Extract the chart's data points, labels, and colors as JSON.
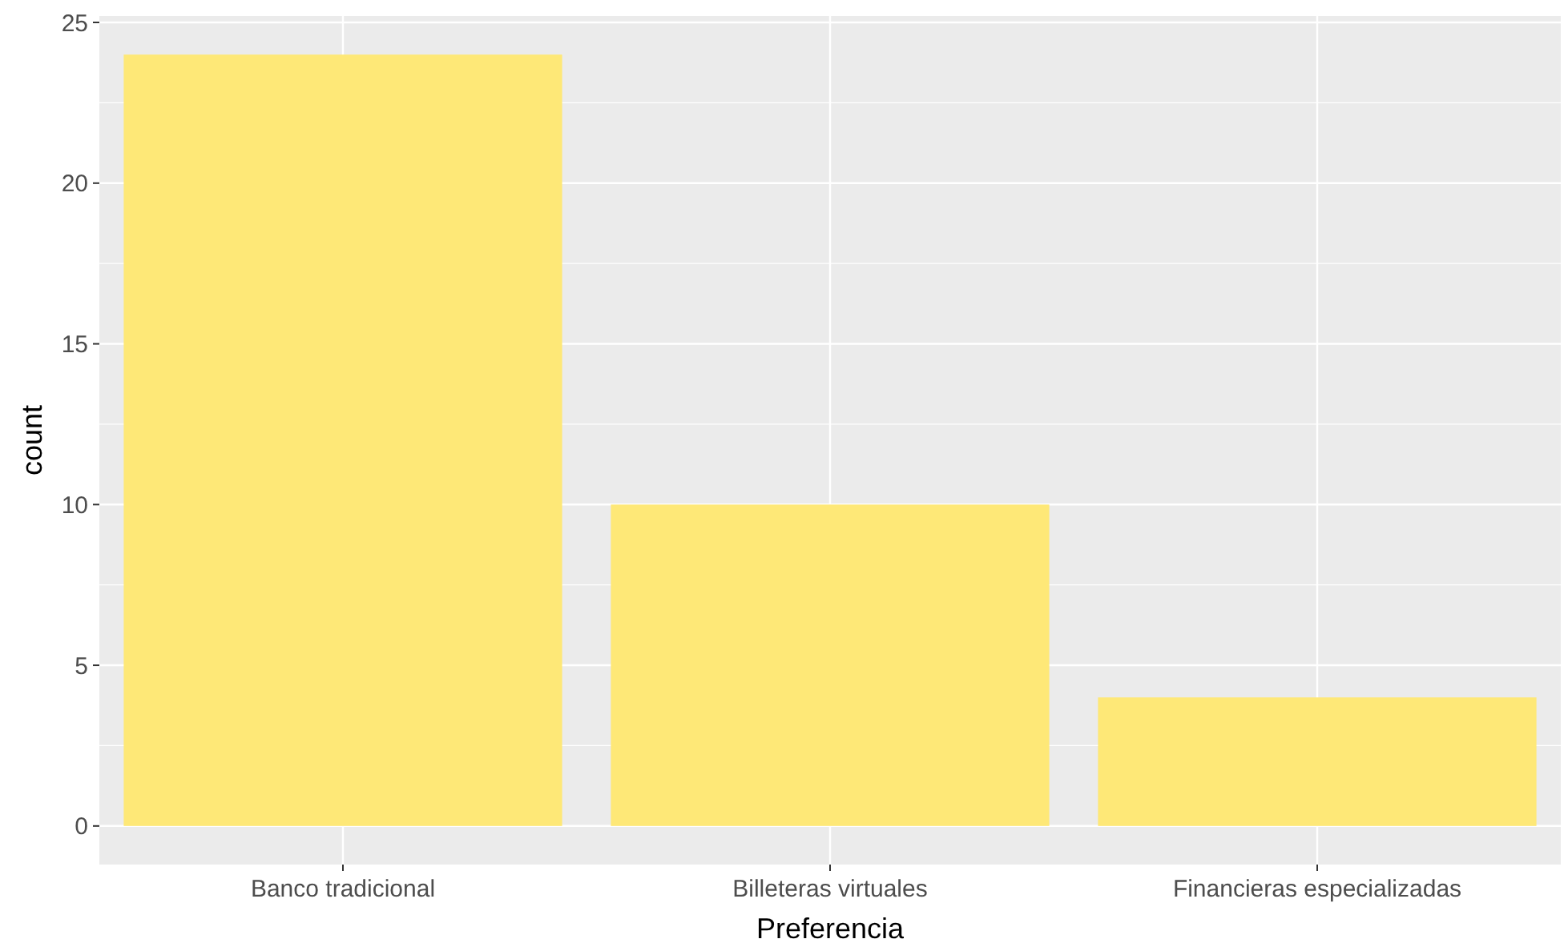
{
  "chart_data": {
    "type": "bar",
    "xlabel": "Preferencia",
    "ylabel": "count",
    "categories": [
      "Banco tradicional",
      "Billeteras virtuales",
      "Financieras especializadas"
    ],
    "values": [
      24,
      10,
      4
    ],
    "color": "#fee877",
    "ylim": [
      -1.2,
      25.2
    ],
    "yticks": [
      0,
      5,
      10,
      15,
      20,
      25
    ],
    "grid": true
  }
}
